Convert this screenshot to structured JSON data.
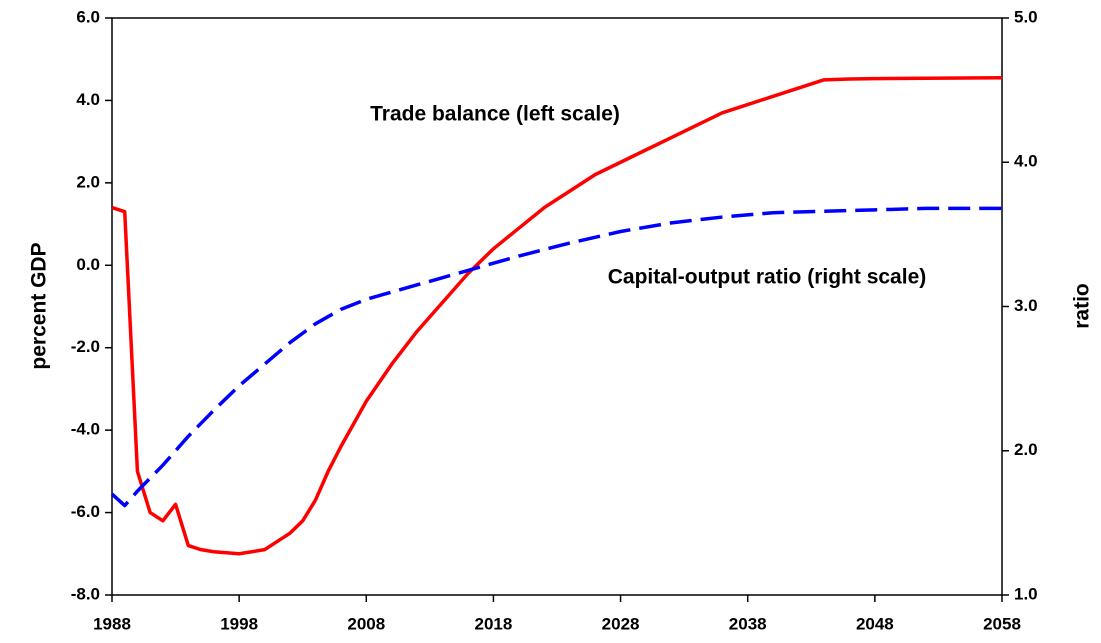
{
  "chart_data": {
    "type": "line",
    "y_label": "percent GDP",
    "y2_label": "ratio",
    "annotations": [
      "Trade balance (left scale)",
      "Capital-output ratio (right scale)"
    ],
    "xlim": [
      1988,
      2058
    ],
    "xticks": [
      1988,
      1998,
      2008,
      2018,
      2028,
      2038,
      2048,
      2058
    ],
    "ylim": [
      -8,
      6
    ],
    "yticks": [
      {
        "value": -8,
        "label": "-8.0"
      },
      {
        "value": -6,
        "label": "-6.0"
      },
      {
        "value": -4,
        "label": "-4.0"
      },
      {
        "value": -2,
        "label": "-2.0"
      },
      {
        "value": 0,
        "label": "0.0"
      },
      {
        "value": 2,
        "label": "2.0"
      },
      {
        "value": 4,
        "label": "4.0"
      },
      {
        "value": 6,
        "label": "6.0"
      }
    ],
    "y2lim": [
      1,
      5
    ],
    "y2ticks": [
      {
        "value": 1,
        "label": "1.0"
      },
      {
        "value": 2,
        "label": "2.0"
      },
      {
        "value": 3,
        "label": "3.0"
      },
      {
        "value": 4,
        "label": "4.0"
      },
      {
        "value": 5,
        "label": "5.0"
      }
    ],
    "series": [
      {
        "name": "Trade balance (left scale)",
        "color": "#ff0000",
        "dash": false,
        "x": [
          1988,
          1989,
          1990,
          1991,
          1992,
          1993,
          1994,
          1995,
          1996,
          1998,
          2000,
          2001,
          2002,
          2003,
          2004,
          2005,
          2006,
          2008,
          2010,
          2012,
          2014,
          2016,
          2018,
          2020,
          2022,
          2024,
          2026,
          2028,
          2030,
          2032,
          2034,
          2036,
          2038,
          2040,
          2042,
          2044,
          2046,
          2048,
          2058
        ],
        "values": [
          1.4,
          1.3,
          -5.0,
          -6.0,
          -6.2,
          -5.8,
          -6.8,
          -6.9,
          -6.95,
          -7.0,
          -6.9,
          -6.7,
          -6.5,
          -6.2,
          -5.7,
          -5.0,
          -4.4,
          -3.3,
          -2.4,
          -1.6,
          -0.9,
          -0.2,
          0.4,
          0.9,
          1.4,
          1.8,
          2.2,
          2.5,
          2.8,
          3.1,
          3.4,
          3.7,
          3.9,
          4.1,
          4.3,
          4.5,
          4.52,
          4.53,
          4.55
        ]
      },
      {
        "name": "Capital-output ratio (right scale)",
        "color": "#0000ff",
        "dash": true,
        "axis": "y2",
        "x": [
          1988,
          1989,
          1990,
          1992,
          1994,
          1996,
          1998,
          2000,
          2002,
          2004,
          2006,
          2008,
          2010,
          2012,
          2014,
          2016,
          2018,
          2020,
          2024,
          2028,
          2032,
          2036,
          2040,
          2044,
          2048,
          2052,
          2058
        ],
        "values": [
          1.7,
          1.62,
          1.72,
          1.9,
          2.1,
          2.28,
          2.45,
          2.6,
          2.75,
          2.88,
          2.98,
          3.05,
          3.1,
          3.15,
          3.2,
          3.25,
          3.3,
          3.35,
          3.44,
          3.52,
          3.58,
          3.62,
          3.65,
          3.66,
          3.67,
          3.68,
          3.68
        ]
      }
    ]
  }
}
